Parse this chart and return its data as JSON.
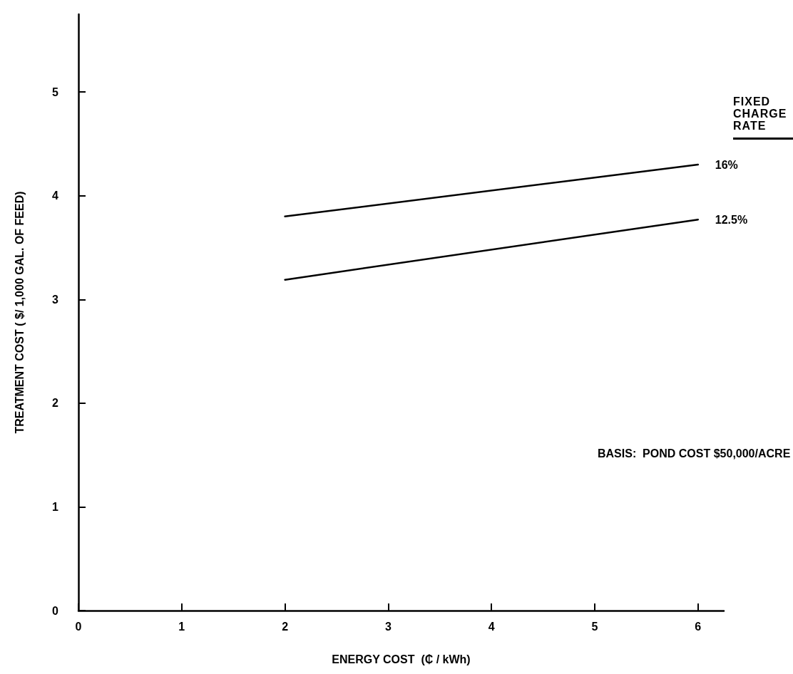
{
  "chart_data": {
    "type": "line",
    "xlabel": "ENERGY COST  (₵ / kWh)",
    "ylabel": "TREATMENT COST ( $/ 1,000 GAL. OF FEED)",
    "legend_title": "FIXED CHARGE RATE",
    "x": [
      2,
      6
    ],
    "xlim": [
      0,
      6.25
    ],
    "xticks": [
      0,
      1,
      2,
      3,
      4,
      5,
      6
    ],
    "ylim": [
      0,
      5.75
    ],
    "yticks": [
      0,
      1,
      2,
      3,
      4,
      5
    ],
    "grid": false,
    "marker": "none",
    "line_style": "solid",
    "series": [
      {
        "name": "16%",
        "color": "#000000",
        "values": [
          3.8,
          4.3
        ]
      },
      {
        "name": "12.5%",
        "color": "#000000",
        "values": [
          3.19,
          3.77
        ]
      }
    ],
    "annotations": [
      "BASIS:  POND COST $50,000/ACRE"
    ]
  }
}
